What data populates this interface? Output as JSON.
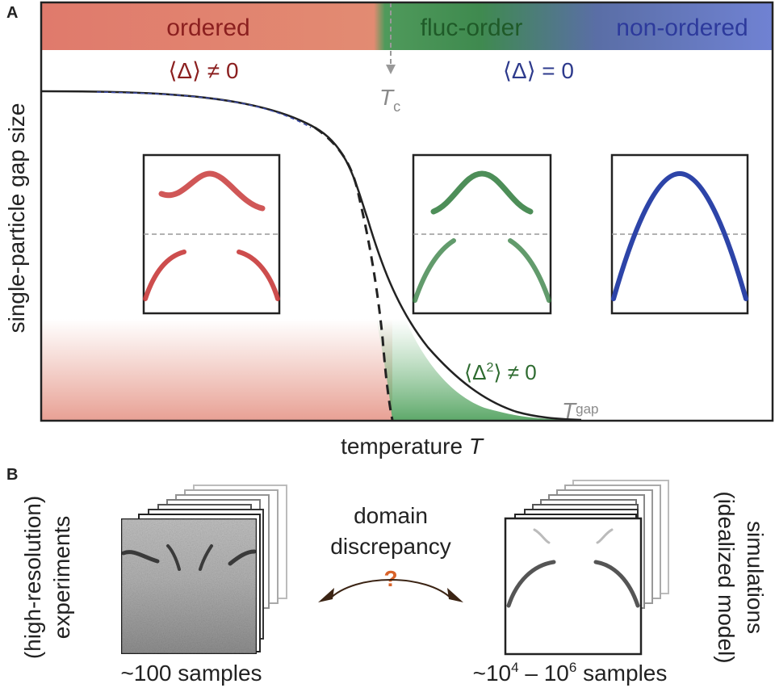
{
  "panel_a": {
    "label": "A",
    "phases": {
      "ordered": "ordered",
      "fluc_order": "fluc-order",
      "non_ordered": "non-ordered"
    },
    "order_nonzero": "⟨Δ⟩ ≠ 0",
    "order_zero": "⟨Δ⟩ = 0",
    "tc_symbol": "T",
    "tc_subscript": "c",
    "fluct_label_pre": "⟨Δ",
    "fluct_label_sup": "2",
    "fluct_label_post": "⟩ ≠ 0",
    "tgap_symbol": "T",
    "tgap_subscript": "gap",
    "ylabel": "single-particle gap size",
    "xlabel_text": "temperature ",
    "xlabel_symbol": "T",
    "colors": {
      "ordered": "#c8473a",
      "fluc_order": "#2e7a3b",
      "non_ordered": "#2d44a8",
      "tc_marker": "#999999",
      "order_nonzero_text": "#8b1f1f",
      "order_zero_text": "#2d3a8c",
      "fluct_text": "#2e6b30"
    }
  },
  "panel_b": {
    "label": "B",
    "left_vertical_line1": "(high-resolution)",
    "left_vertical_line2": "experiments",
    "left_count": "~100 samples",
    "center_line1": "domain",
    "center_line2": "discrepancy",
    "question_mark": "?",
    "right_count_pre": "~10",
    "right_count_exp1": "4",
    "right_count_mid": " – 10",
    "right_count_exp2": "6",
    "right_count_post": " samples",
    "right_vertical_line1": "(idealized model)",
    "right_vertical_line2": "simulations",
    "colors": {
      "question_mark": "#d9632a",
      "arrow": "#3b2414"
    }
  }
}
